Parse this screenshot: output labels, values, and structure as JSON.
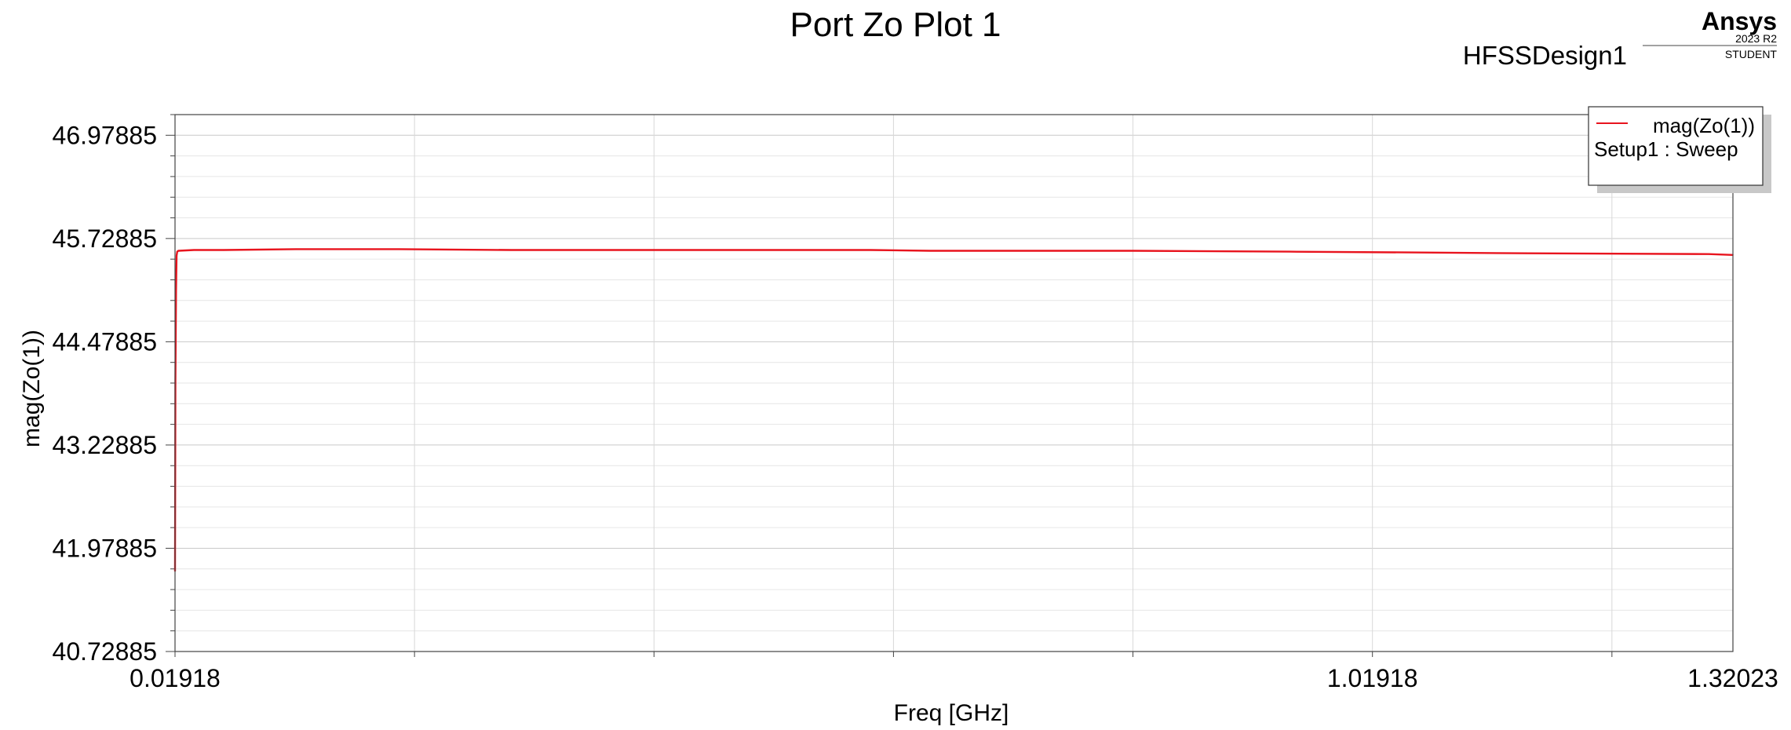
{
  "chart_data": {
    "type": "line",
    "title": "Port Zo Plot 1",
    "design_name": "HFSSDesign1",
    "xlabel": "Freq [GHz]",
    "ylabel": "mag(Zo(1))",
    "xlim": [
      0.01918,
      1.32023
    ],
    "ylim": [
      40.72885,
      47.22885
    ],
    "x_ticks": [
      {
        "value": 0.01918,
        "label": "0.01918"
      },
      {
        "value": 1.01918,
        "label": "1.01918"
      },
      {
        "value": 1.32023,
        "label": "1.32023"
      }
    ],
    "y_ticks": [
      {
        "value": 40.72885,
        "label": "40.72885"
      },
      {
        "value": 41.97885,
        "label": "41.97885"
      },
      {
        "value": 43.22885,
        "label": "43.22885"
      },
      {
        "value": 44.47885,
        "label": "44.47885"
      },
      {
        "value": 45.72885,
        "label": "45.72885"
      },
      {
        "value": 46.97885,
        "label": "46.97885"
      }
    ],
    "x_minor_ticks": [
      0.21918,
      0.41918,
      0.61918,
      0.81918,
      1.21918
    ],
    "grid": true,
    "legend_position": "top-right",
    "series": [
      {
        "name": "mag(Zo(1))",
        "legend_sub": "Setup1 : Sweep",
        "color": "#e8141e",
        "x": [
          0.01918,
          0.0195,
          0.02,
          0.0205,
          0.021,
          0.022,
          0.035,
          0.06,
          0.12,
          0.2,
          0.3,
          0.45,
          0.6,
          0.65,
          0.82,
          0.95,
          1.05,
          1.15,
          1.3,
          1.32023
        ],
        "y": [
          41.7,
          44.0,
          45.1,
          45.52,
          45.57,
          45.58,
          45.59,
          45.59,
          45.6,
          45.6,
          45.59,
          45.59,
          45.59,
          45.58,
          45.58,
          45.57,
          45.56,
          45.55,
          45.54,
          45.53
        ]
      }
    ]
  },
  "branding": {
    "name": "Ansys",
    "version": "2023 R2",
    "edition": "STUDENT"
  }
}
